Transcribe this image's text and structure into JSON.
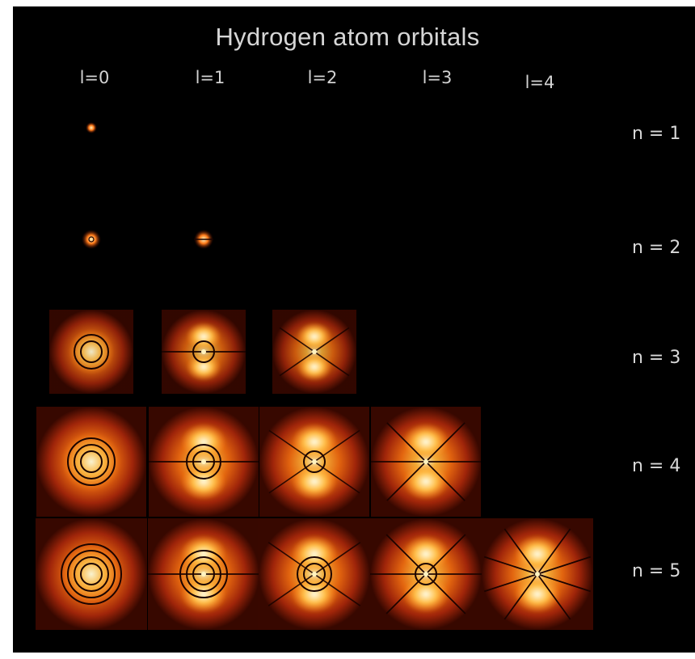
{
  "title": "Hydrogen atom orbitals",
  "l_labels": [
    "l=0",
    "l=1",
    "l=2",
    "l=3",
    "l=4"
  ],
  "n_labels": [
    "n = 1",
    "n = 2",
    "n = 3",
    "n = 4",
    "n = 5"
  ],
  "colors": {
    "background": "#000000",
    "glow_core": "#fff6c8",
    "glow_mid": "#ff9a1c",
    "glow_outer": "#c32d06",
    "node_line": "#1a0300"
  }
}
